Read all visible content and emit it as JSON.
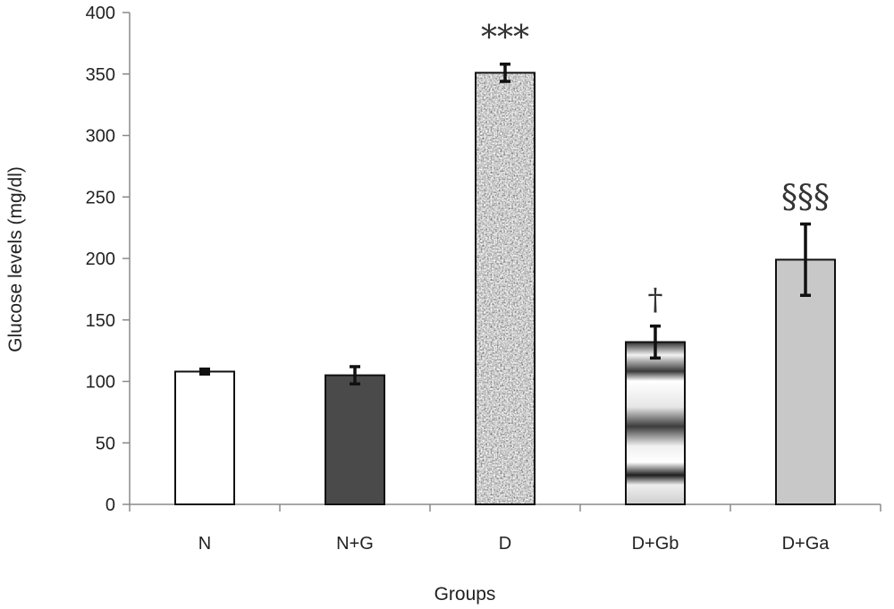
{
  "chart_data": {
    "type": "bar",
    "xlabel": "Groups",
    "ylabel": "Glucose levels (mg/dl)",
    "ylim": [
      0,
      400
    ],
    "yticks": [
      0,
      50,
      100,
      150,
      200,
      250,
      300,
      350,
      400
    ],
    "grid": false,
    "categories": [
      "N",
      "N+G",
      "D",
      "D+Gb",
      "D+Ga"
    ],
    "values": [
      108,
      105,
      351,
      132,
      199
    ],
    "errors": [
      2,
      7,
      7,
      13,
      29
    ],
    "significance": [
      "",
      "",
      "***",
      "†",
      "§§§"
    ],
    "fills": [
      "#ffffff",
      "#4a4a4a",
      "speckle",
      "metal-gradient",
      "#c8c8c8"
    ]
  }
}
